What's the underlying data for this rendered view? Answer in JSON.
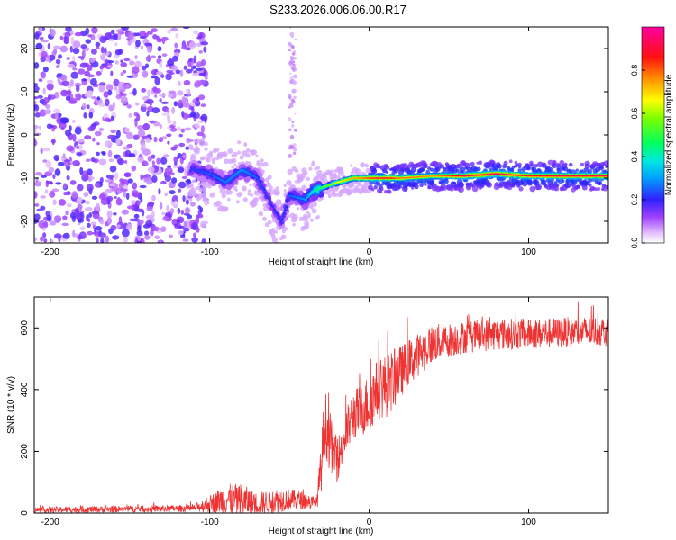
{
  "figure_title": "S233.2026.006.06.00.R17",
  "chart_data": [
    {
      "type": "heatmap",
      "title": "S233.2026.006.06.00.R17",
      "xlabel": "Height of straight line (km)",
      "ylabel": "Frequency (Hz)",
      "xlim": [
        -210,
        150
      ],
      "ylim": [
        -25,
        25
      ],
      "xticks": [
        -200,
        -100,
        0,
        100
      ],
      "yticks": [
        -20,
        -10,
        0,
        10,
        20
      ],
      "xtick_labels": [
        "-200",
        "-100",
        "0",
        "100"
      ],
      "ytick_labels": [
        "-20",
        "-10",
        "0",
        "10",
        "20"
      ],
      "colorbar": {
        "label": "Normalized spectral amplitude",
        "range": [
          0,
          1
        ],
        "ticks": [
          0.0,
          0.2,
          0.4,
          0.6,
          0.8
        ],
        "tick_labels": [
          "0.0",
          "0.2",
          "0.4",
          "0.6",
          "0.8"
        ],
        "colormap": "rainbow (white-purple-blue-cyan-green-yellow-orange-red-magenta)"
      },
      "features": {
        "noise_region_x": [
          -210,
          -110
        ],
        "noise_amplitude": 0.15,
        "signal_ridge": [
          {
            "x": -110,
            "freq": -8,
            "amp": 0.22
          },
          {
            "x": -100,
            "freq": -9,
            "amp": 0.25
          },
          {
            "x": -90,
            "freq": -11,
            "amp": 0.28
          },
          {
            "x": -80,
            "freq": -8,
            "amp": 0.3
          },
          {
            "x": -70,
            "freq": -10,
            "amp": 0.25
          },
          {
            "x": -60,
            "freq": -17,
            "amp": 0.2
          },
          {
            "x": -55,
            "freq": -20,
            "amp": 0.22
          },
          {
            "x": -50,
            "freq": -14,
            "amp": 0.25
          },
          {
            "x": -40,
            "freq": -15,
            "amp": 0.3
          },
          {
            "x": -35,
            "freq": -13,
            "amp": 0.4
          },
          {
            "x": -28,
            "freq": -12,
            "amp": 0.55
          },
          {
            "x": -20,
            "freq": -11,
            "amp": 0.65
          },
          {
            "x": -10,
            "freq": -10,
            "amp": 0.75
          },
          {
            "x": 0,
            "freq": -10,
            "amp": 0.85
          },
          {
            "x": 10,
            "freq": -10,
            "amp": 0.9
          },
          {
            "x": 20,
            "freq": -10,
            "amp": 0.8
          },
          {
            "x": 40,
            "freq": -9.5,
            "amp": 0.75
          },
          {
            "x": 60,
            "freq": -9.5,
            "amp": 0.9
          },
          {
            "x": 80,
            "freq": -9,
            "amp": 0.95
          },
          {
            "x": 100,
            "freq": -9.5,
            "amp": 0.85
          },
          {
            "x": 120,
            "freq": -9.5,
            "amp": 0.9
          },
          {
            "x": 150,
            "freq": -9.5,
            "amp": 0.9
          }
        ]
      }
    },
    {
      "type": "line",
      "xlabel": "Height of straight line (km)",
      "ylabel": "SNR (10 * v/v)",
      "xlim": [
        -210,
        150
      ],
      "ylim": [
        0,
        700
      ],
      "xticks": [
        -200,
        -100,
        0,
        100
      ],
      "yticks": [
        0,
        200,
        400,
        600
      ],
      "xtick_labels": [
        "-200",
        "-100",
        "0",
        "100"
      ],
      "ytick_labels": [
        "0",
        "200",
        "400",
        "600"
      ],
      "series": [
        {
          "name": "SNR",
          "color": "#ee3333",
          "envelope": {
            "x": [
              -210,
              -110,
              -100,
              -90,
              -80,
              -70,
              -60,
              -50,
              -40,
              -33,
              -30,
              -28,
              -25,
              -20,
              -15,
              -10,
              -5,
              0,
              5,
              10,
              15,
              20,
              30,
              40,
              50,
              60,
              80,
              100,
              120,
              150
            ],
            "base": [
              10,
              15,
              30,
              45,
              40,
              30,
              40,
              45,
              40,
              30,
              150,
              300,
              240,
              170,
              250,
              320,
              330,
              360,
              400,
              410,
              430,
              460,
              510,
              550,
              560,
              570,
              580,
              580,
              585,
              590
            ],
            "spread": [
              14,
              16,
              40,
              70,
              80,
              50,
              60,
              50,
              40,
              30,
              120,
              160,
              140,
              100,
              110,
              120,
              120,
              140,
              140,
              150,
              140,
              120,
              100,
              90,
              80,
              75,
              75,
              70,
              70,
              70
            ]
          }
        }
      ]
    }
  ]
}
